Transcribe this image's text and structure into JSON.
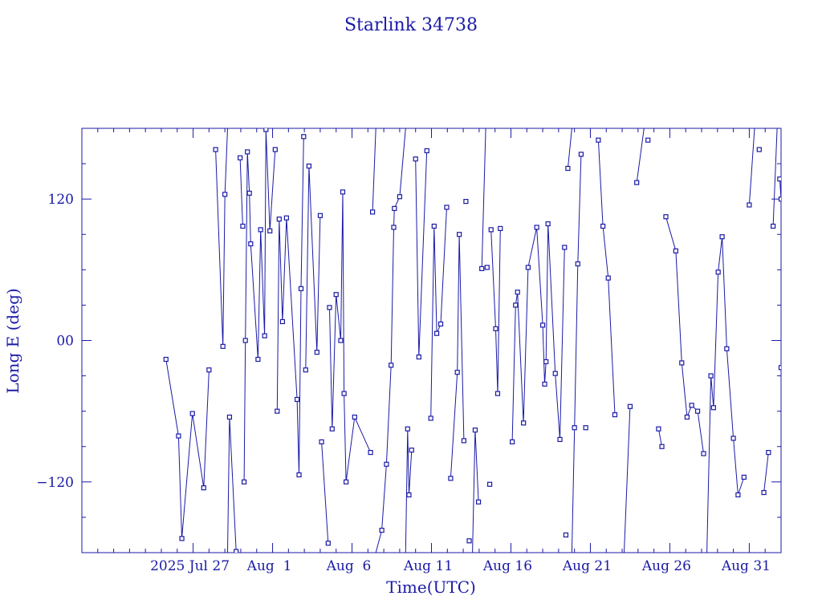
{
  "chart_data": {
    "type": "line",
    "title": "Starlink 34738",
    "xlabel": "Time(UTC)",
    "ylabel": "Long E (deg)",
    "colors": {
      "axis": "#1a1aa6",
      "series": "#1a1aa6",
      "background": "#ffffff"
    },
    "x_axis": {
      "type": "date",
      "range": [
        "2025-07-20",
        "2025-09-02"
      ],
      "ticks": [
        {
          "value": "2025-07-27",
          "label": "2025 Jul 27"
        },
        {
          "value": "2025-08-01",
          "label": "Aug  1"
        },
        {
          "value": "2025-08-06",
          "label": "Aug  6"
        },
        {
          "value": "2025-08-11",
          "label": "Aug 11"
        },
        {
          "value": "2025-08-16",
          "label": "Aug 16"
        },
        {
          "value": "2025-08-21",
          "label": "Aug 21"
        },
        {
          "value": "2025-08-26",
          "label": "Aug 26"
        },
        {
          "value": "2025-08-31",
          "label": "Aug 31"
        }
      ]
    },
    "y_axis": {
      "range": [
        -180,
        180
      ],
      "ticks": [
        {
          "value": 120,
          "label": "120"
        },
        {
          "value": 0,
          "label": "00"
        },
        {
          "value": -120,
          "label": "−120"
        }
      ]
    },
    "series": [
      {
        "marker": "open-square",
        "points": [
          [
            "2025-07-25T07:00",
            -16
          ],
          [
            "2025-07-26T02:00",
            -81
          ],
          [
            "2025-07-26T07:00",
            -168
          ],
          [
            "2025-07-26T23:00",
            -62
          ],
          [
            "2025-07-27T16:00",
            -125
          ],
          [
            "2025-07-28T00:00",
            -25
          ],
          [
            "2025-07-28T08:00",
            180
          ],
          [
            "2025-07-28T08:00",
            -180
          ],
          [
            "2025-07-28T10:00",
            162
          ],
          [
            "2025-07-28T21:00",
            -5
          ],
          [
            "2025-07-29T00:00",
            124
          ],
          [
            "2025-07-29T04:00",
            180
          ],
          [
            "2025-07-29T04:00",
            -180
          ],
          [
            "2025-07-29T07:00",
            -65
          ],
          [
            "2025-07-29T17:00",
            -179
          ],
          [
            "2025-07-29T23:00",
            155
          ],
          [
            "2025-07-30T03:00",
            97
          ],
          [
            "2025-07-30T05:00",
            -120
          ],
          [
            "2025-07-30T07:00",
            0
          ],
          [
            "2025-07-30T10:00",
            160
          ],
          [
            "2025-07-30T13:00",
            125
          ],
          [
            "2025-07-30T15:00",
            82
          ],
          [
            "2025-07-31T02:00",
            -16
          ],
          [
            "2025-07-31T06:00",
            94
          ],
          [
            "2025-07-31T12:00",
            4
          ],
          [
            "2025-07-31T14:00",
            179
          ],
          [
            "2025-07-31T20:00",
            93
          ],
          [
            "2025-08-01T04:00",
            162
          ],
          [
            "2025-08-01T07:00",
            -60
          ],
          [
            "2025-08-01T10:00",
            103
          ],
          [
            "2025-08-01T15:00",
            16
          ],
          [
            "2025-08-01T21:00",
            104
          ],
          [
            "2025-08-02T13:00",
            -50
          ],
          [
            "2025-08-02T16:00",
            -114
          ],
          [
            "2025-08-02T19:00",
            44
          ],
          [
            "2025-08-02T23:00",
            173
          ],
          [
            "2025-08-03T02:00",
            -25
          ],
          [
            "2025-08-03T07:00",
            148
          ],
          [
            "2025-08-03T19:00",
            -10
          ],
          [
            "2025-08-04T00:00",
            106
          ],
          [
            "2025-08-04T02:00",
            -86
          ],
          [
            "2025-08-04T12:00",
            -172
          ],
          [
            "2025-08-04T14:00",
            28
          ],
          [
            "2025-08-04T18:00",
            -75
          ],
          [
            "2025-08-05T00:00",
            39
          ],
          [
            "2025-08-05T07:00",
            0
          ],
          [
            "2025-08-05T10:00",
            126
          ],
          [
            "2025-08-05T12:00",
            -45
          ],
          [
            "2025-08-05T15:00",
            -120
          ],
          [
            "2025-08-06T04:00",
            -65
          ],
          [
            "2025-08-07T04:00",
            -95
          ],
          [
            "2025-08-07T07:00",
            109
          ],
          [
            "2025-08-07T12:00",
            180
          ],
          [
            "2025-08-07T12:00",
            -180
          ],
          [
            "2025-08-07T21:00",
            -161
          ],
          [
            "2025-08-08T04:00",
            -105
          ],
          [
            "2025-08-08T11:00",
            -21
          ],
          [
            "2025-08-08T15:00",
            96
          ],
          [
            "2025-08-08T16:00",
            112
          ],
          [
            "2025-08-09T00:00",
            122
          ],
          [
            "2025-08-09T09:00",
            180
          ],
          [
            "2025-08-09T09:00",
            -180
          ],
          [
            "2025-08-09T12:00",
            -75
          ],
          [
            "2025-08-09T14:00",
            -131
          ],
          [
            "2025-08-09T18:00",
            -93
          ],
          [
            "2025-08-10T00:00",
            154
          ],
          [
            "2025-08-10T05:00",
            -14
          ],
          [
            "2025-08-10T17:00",
            161
          ],
          [
            "2025-08-10T23:00",
            -66
          ],
          [
            "2025-08-11T04:00",
            97
          ],
          [
            "2025-08-11T08:00",
            6
          ],
          [
            "2025-08-11T14:00",
            14
          ],
          [
            "2025-08-11T23:00",
            113
          ],
          [
            "2025-08-12T05:00",
            -117
          ],
          [
            "2025-08-12T15:00",
            -27
          ],
          [
            "2025-08-12T18:00",
            90
          ],
          [
            "2025-08-13T01:00",
            -85
          ],
          [
            "2025-08-13T04:00",
            118
          ],
          [
            "2025-08-13T09:00",
            -170
          ],
          [
            "2025-08-13T14:00",
            180
          ],
          [
            "2025-08-13T14:00",
            -180
          ],
          [
            "2025-08-13T18:00",
            -76
          ],
          [
            "2025-08-13T23:00",
            -137
          ],
          [
            "2025-08-14T04:00",
            61
          ],
          [
            "2025-08-14T10:00",
            180
          ],
          [
            "2025-08-14T10:00",
            -180
          ],
          [
            "2025-08-14T12:00",
            62
          ],
          [
            "2025-08-14T16:00",
            -122
          ],
          [
            "2025-08-14T18:00",
            94
          ],
          [
            "2025-08-15T01:00",
            10
          ],
          [
            "2025-08-15T04:00",
            -45
          ],
          [
            "2025-08-15T08:00",
            95
          ],
          [
            "2025-08-16T02:00",
            -86
          ],
          [
            "2025-08-16T07:00",
            30
          ],
          [
            "2025-08-16T10:00",
            41
          ],
          [
            "2025-08-16T19:00",
            -70
          ],
          [
            "2025-08-17T02:00",
            62
          ],
          [
            "2025-08-17T15:00",
            96
          ],
          [
            "2025-08-18T00:00",
            13
          ],
          [
            "2025-08-18T03:00",
            -37
          ],
          [
            "2025-08-18T05:00",
            -18
          ],
          [
            "2025-08-18T08:00",
            99
          ],
          [
            "2025-08-18T19:00",
            -28
          ],
          [
            "2025-08-19T02:00",
            -84
          ],
          [
            "2025-08-19T09:00",
            79
          ],
          [
            "2025-08-19T11:00",
            -165
          ],
          [
            "2025-08-19T14:00",
            146
          ],
          [
            "2025-08-19T20:00",
            180
          ],
          [
            "2025-08-19T20:00",
            -180
          ],
          [
            "2025-08-20T00:00",
            -74
          ],
          [
            "2025-08-20T05:00",
            65
          ],
          [
            "2025-08-20T10:00",
            158
          ],
          [
            "2025-08-20T17:00",
            -74
          ],
          [
            "2025-08-21T02:00",
            180
          ],
          [
            "2025-08-21T02:00",
            -180
          ],
          [
            "2025-08-21T12:00",
            170
          ],
          [
            "2025-08-21T19:00",
            97
          ],
          [
            "2025-08-22T03:00",
            53
          ],
          [
            "2025-08-22T13:00",
            -63
          ],
          [
            "2025-08-23T03:00",
            180
          ],
          [
            "2025-08-23T03:00",
            -180
          ],
          [
            "2025-08-23T12:00",
            -56
          ],
          [
            "2025-08-23T22:00",
            134
          ],
          [
            "2025-08-24T09:00",
            180
          ],
          [
            "2025-08-24T09:00",
            -180
          ],
          [
            "2025-08-24T15:00",
            170
          ],
          [
            "2025-08-25T07:00",
            -75
          ],
          [
            "2025-08-25T12:00",
            -90
          ],
          [
            "2025-08-25T18:00",
            105
          ],
          [
            "2025-08-26T09:00",
            76
          ],
          [
            "2025-08-26T18:00",
            -19
          ],
          [
            "2025-08-27T02:00",
            -65
          ],
          [
            "2025-08-27T09:00",
            -55
          ],
          [
            "2025-08-27T18:00",
            -60
          ],
          [
            "2025-08-28T03:00",
            -96
          ],
          [
            "2025-08-28T08:00",
            180
          ],
          [
            "2025-08-28T08:00",
            -180
          ],
          [
            "2025-08-28T14:00",
            -30
          ],
          [
            "2025-08-28T18:00",
            -57
          ],
          [
            "2025-08-29T01:00",
            58
          ],
          [
            "2025-08-29T07:00",
            88
          ],
          [
            "2025-08-29T14:00",
            -7
          ],
          [
            "2025-08-30T00:00",
            -83
          ],
          [
            "2025-08-30T07:00",
            -131
          ],
          [
            "2025-08-30T16:00",
            -116
          ],
          [
            "2025-08-31T00:00",
            115
          ],
          [
            "2025-08-31T08:00",
            180
          ],
          [
            "2025-08-31T08:00",
            -180
          ],
          [
            "2025-08-31T15:00",
            162
          ],
          [
            "2025-08-31T22:00",
            -129
          ],
          [
            "2025-09-01T05:00",
            -95
          ],
          [
            "2025-09-01T12:00",
            97
          ],
          [
            "2025-09-01T18:00",
            180
          ],
          [
            "2025-09-01T18:00",
            -180
          ],
          [
            "2025-09-01T22:00",
            137
          ],
          [
            "2025-09-02T00:00",
            120
          ],
          [
            "2025-09-02T00:00",
            -23
          ]
        ]
      }
    ]
  }
}
